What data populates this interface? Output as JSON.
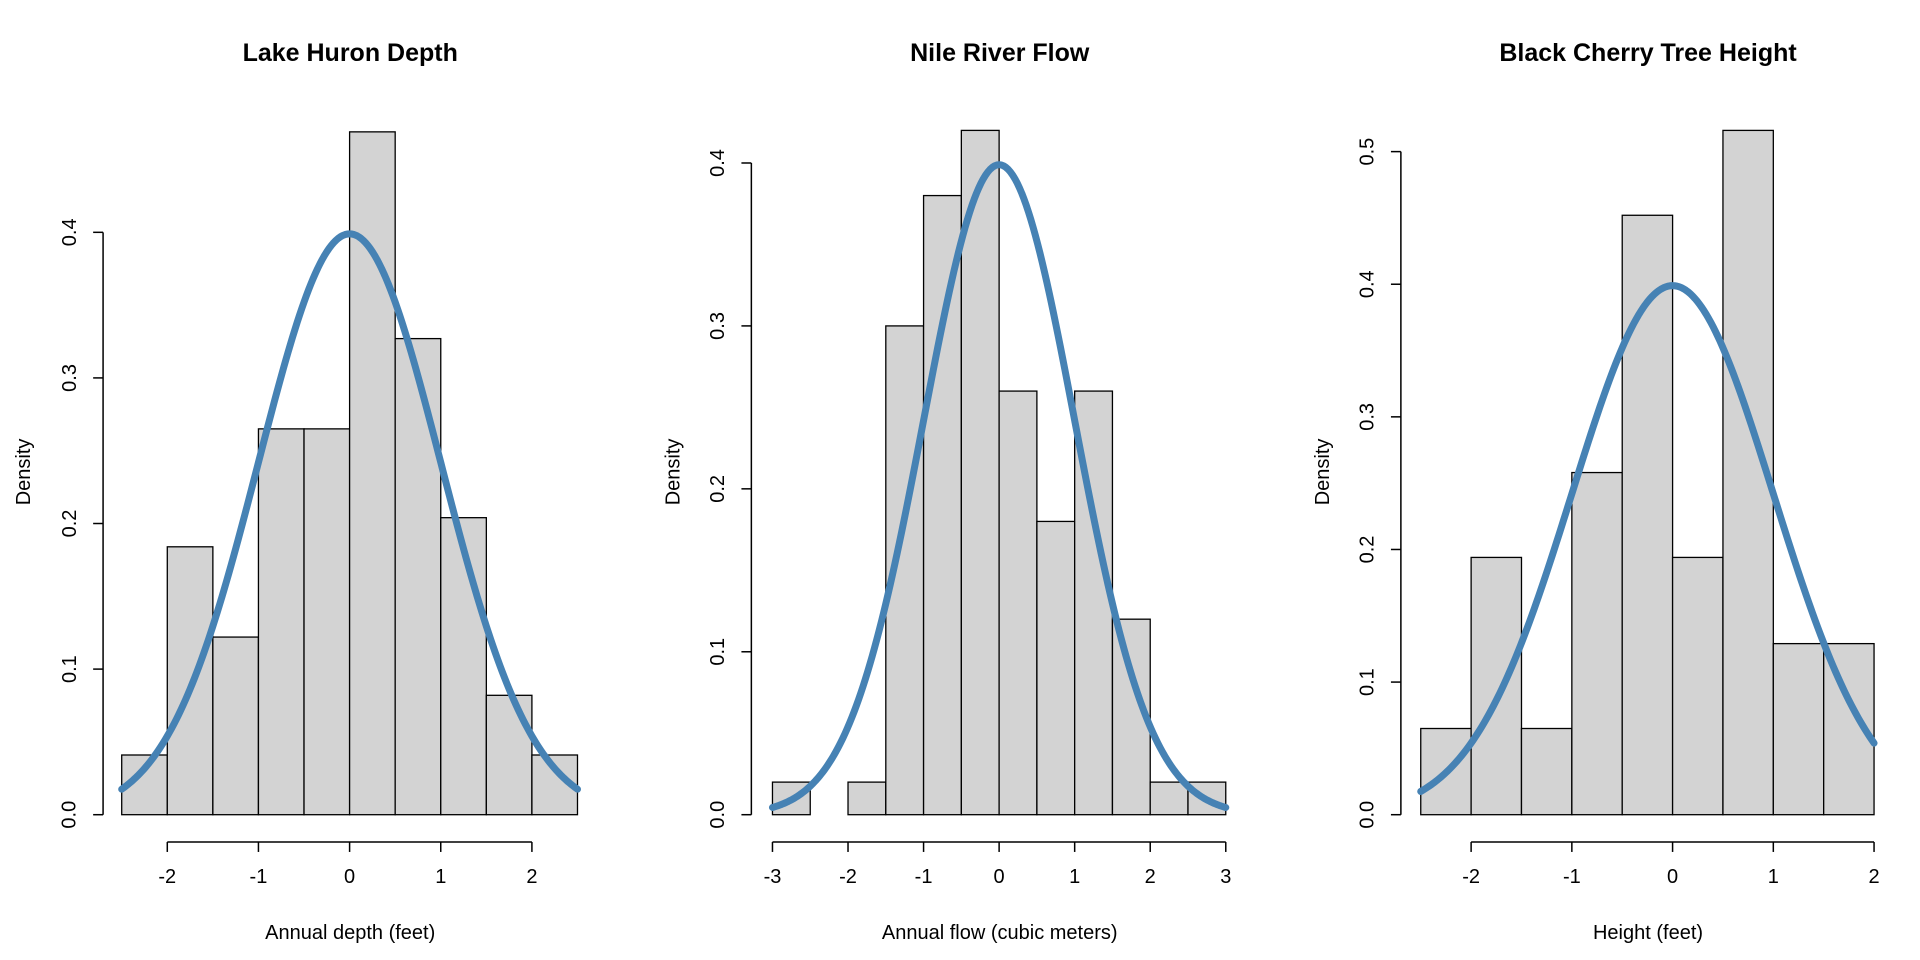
{
  "colors": {
    "bar_fill": "#d3d3d3",
    "bar_stroke": "#000000",
    "curve": "#4682b4"
  },
  "chart_data": [
    {
      "type": "bar",
      "title": "Lake Huron Depth",
      "xlabel": "Annual depth (feet)",
      "ylabel": "Density",
      "xlim": [
        -2.5,
        2.5
      ],
      "ylim": [
        0,
        0.47
      ],
      "bin_edges": [
        -2.5,
        -2.0,
        -1.5,
        -1.0,
        -0.5,
        0.0,
        0.5,
        1.0,
        1.5,
        2.0,
        2.5
      ],
      "values": [
        0.041,
        0.184,
        0.122,
        0.265,
        0.265,
        0.469,
        0.327,
        0.204,
        0.082,
        0.041
      ],
      "x_ticks": [
        -2,
        -1,
        0,
        1,
        2
      ],
      "x_tick_labels": [
        "-2",
        "-1",
        "0",
        "1",
        "2"
      ],
      "y_ticks": [
        0.0,
        0.1,
        0.2,
        0.3,
        0.4
      ],
      "y_tick_labels": [
        "0.0",
        "0.1",
        "0.2",
        "0.3",
        "0.4"
      ],
      "overlay": {
        "type": "line",
        "distribution": "standard normal density",
        "x_range": [
          -2.5,
          2.5
        ]
      },
      "grid": false
    },
    {
      "type": "bar",
      "title": "Nile River Flow",
      "xlabel": "Annual flow (cubic meters)",
      "ylabel": "Density",
      "xlim": [
        -3,
        3
      ],
      "ylim": [
        0,
        0.42
      ],
      "bin_edges": [
        -3.0,
        -2.5,
        -2.0,
        -1.5,
        -1.0,
        -0.5,
        0.0,
        0.5,
        1.0,
        1.5,
        2.0,
        2.5,
        3.0
      ],
      "values": [
        0.02,
        0.0,
        0.02,
        0.3,
        0.38,
        0.42,
        0.26,
        0.18,
        0.26,
        0.12,
        0.02,
        0.02
      ],
      "x_ticks": [
        -3,
        -2,
        -1,
        0,
        1,
        2,
        3
      ],
      "x_tick_labels": [
        "-3",
        "-2",
        "-1",
        "0",
        "1",
        "2",
        "3"
      ],
      "y_ticks": [
        0.0,
        0.1,
        0.2,
        0.3,
        0.4
      ],
      "y_tick_labels": [
        "0.0",
        "0.1",
        "0.2",
        "0.3",
        "0.4"
      ],
      "overlay": {
        "type": "line",
        "distribution": "standard normal density",
        "x_range": [
          -3,
          3
        ]
      },
      "grid": false
    },
    {
      "type": "bar",
      "title": "Black Cherry Tree Height",
      "xlabel": "Height (feet)",
      "ylabel": "Density",
      "xlim": [
        -2.5,
        2.0
      ],
      "ylim": [
        0,
        0.516
      ],
      "bin_edges": [
        -2.5,
        -2.0,
        -1.5,
        -1.0,
        -0.5,
        0.0,
        0.5,
        1.0,
        1.5,
        2.0
      ],
      "values": [
        0.065,
        0.194,
        0.065,
        0.258,
        0.452,
        0.194,
        0.516,
        0.129,
        0.129
      ],
      "x_ticks": [
        -2,
        -1,
        0,
        1,
        2
      ],
      "x_tick_labels": [
        "-2",
        "-1",
        "0",
        "1",
        "2"
      ],
      "y_ticks": [
        0.0,
        0.1,
        0.2,
        0.3,
        0.4,
        0.5
      ],
      "y_tick_labels": [
        "0.0",
        "0.1",
        "0.2",
        "0.3",
        "0.4",
        "0.5"
      ],
      "overlay": {
        "type": "line",
        "distribution": "standard normal density",
        "x_range": [
          -2.5,
          2.0
        ]
      },
      "grid": false
    }
  ]
}
